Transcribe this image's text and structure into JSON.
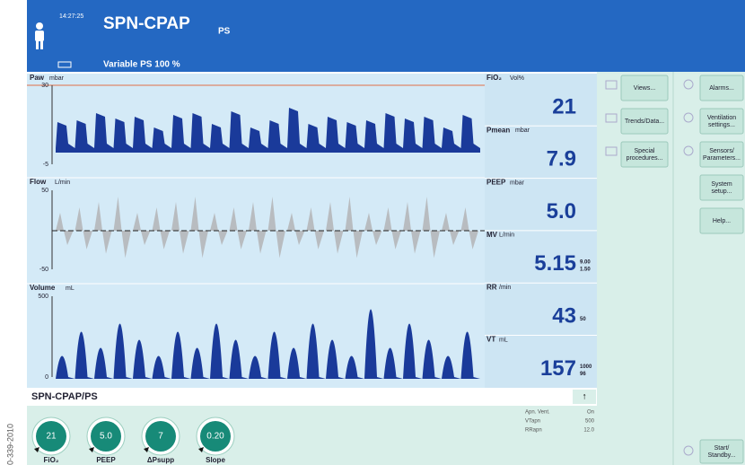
{
  "header": {
    "time": "14:27:25",
    "mode": "SPN-CPAP",
    "submode": "PS",
    "subtitle": "Variable PS 100 %"
  },
  "waveforms": [
    {
      "label": "Paw",
      "unit": "mbar",
      "max": "30",
      "min": "-5"
    },
    {
      "label": "Flow",
      "unit": "L/min",
      "max": "50",
      "min": "-50"
    },
    {
      "label": "Volume",
      "unit": "mL",
      "max": "500",
      "min": "0"
    }
  ],
  "parameters": [
    {
      "label": "FiO₂",
      "unit": "Vol%",
      "value": "21",
      "limits": []
    },
    {
      "label": "Pmean",
      "unit": "mbar",
      "value": "7.9",
      "limits": []
    },
    {
      "label": "PEEP",
      "unit": "mbar",
      "value": "5.0",
      "limits": []
    },
    {
      "label": "MV",
      "unit": "L/min",
      "value": "5.15",
      "limits": [
        "9.00",
        "1.50"
      ]
    },
    {
      "label": "RR",
      "unit": "/min",
      "value": "43",
      "limits": [
        "50"
      ]
    },
    {
      "label": "VT",
      "unit": "mL",
      "value": "157",
      "limits": [
        "1000",
        "96"
      ]
    }
  ],
  "menu": {
    "left": [
      "Views...",
      "Trends/Data...",
      "Special procedures..."
    ],
    "right": [
      "Alarms...",
      "Ventilation settings...",
      "Sensors/ Parameters...",
      "System setup...",
      "Help..."
    ],
    "standby": "Start/ Standby..."
  },
  "footer": {
    "mode": "SPN-CPAP/PS",
    "arrow": "↑",
    "apnea": [
      {
        "label": "Apn. Vent.",
        "value": "On"
      },
      {
        "label": "VTapn",
        "value": "500"
      },
      {
        "label": "RRapn",
        "value": "12.0"
      }
    ],
    "knobs": [
      {
        "label": "FiO₂",
        "value": "21"
      },
      {
        "label": "PEEP",
        "value": "5.0"
      },
      {
        "label": "ΔPsupp",
        "value": "7"
      },
      {
        "label": "Slope",
        "value": "0.20"
      }
    ]
  },
  "side_label": "0-339-2010"
}
